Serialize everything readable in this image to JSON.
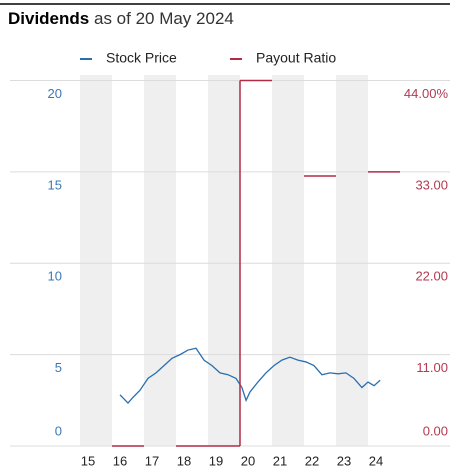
{
  "chart_data": {
    "type": "line",
    "title": "Dividends",
    "subtitle": "as of 20 May 2024",
    "xlim": [
      2015,
      2025
    ],
    "xticks": [
      {
        "value": 2015,
        "label": "15"
      },
      {
        "value": 2016,
        "label": "16"
      },
      {
        "value": 2017,
        "label": "17"
      },
      {
        "value": 2018,
        "label": "18"
      },
      {
        "value": 2019,
        "label": "19"
      },
      {
        "value": 2020,
        "label": "20"
      },
      {
        "value": 2021,
        "label": "21"
      },
      {
        "value": 2022,
        "label": "22"
      },
      {
        "value": 2023,
        "label": "23"
      },
      {
        "value": 2024,
        "label": "24"
      }
    ],
    "ylim": [
      0,
      20.3
    ],
    "yticks": [
      0,
      5,
      10,
      15,
      20
    ],
    "y2lim": [
      0,
      44.66
    ],
    "y2ticks": [
      {
        "value": 0,
        "label": "0.00"
      },
      {
        "value": 11,
        "label": "11.00"
      },
      {
        "value": 22,
        "label": "22.00"
      },
      {
        "value": 33,
        "label": "33.00"
      },
      {
        "value": 44,
        "label": "44.00%"
      }
    ],
    "series": [
      {
        "name": "Stock Price",
        "color": "#2a6fb0",
        "step": false,
        "x": [
          2016.25,
          2016.5,
          2016.625,
          2016.875,
          2017.125,
          2017.375,
          2017.625,
          2017.875,
          2018.125,
          2018.375,
          2018.625,
          2018.875,
          2019.125,
          2019.375,
          2019.625,
          2019.875,
          2020.06,
          2020.19,
          2020.31,
          2020.56,
          2020.81,
          2021.06,
          2021.31,
          2021.56,
          2021.81,
          2022.06,
          2022.31,
          2022.56,
          2022.81,
          2023.06,
          2023.31,
          2023.56,
          2023.81,
          2024.0,
          2024.19,
          2024.38
        ],
        "values": [
          2.8,
          2.35,
          2.6,
          3.05,
          3.7,
          4.0,
          4.4,
          4.8,
          5.0,
          5.25,
          5.35,
          4.7,
          4.4,
          4.0,
          3.9,
          3.7,
          3.2,
          2.5,
          2.95,
          3.5,
          4.0,
          4.4,
          4.7,
          4.86,
          4.7,
          4.6,
          4.4,
          3.9,
          4.0,
          3.95,
          4.0,
          3.7,
          3.2,
          3.5,
          3.3,
          3.6
        ]
      },
      {
        "name": "Payout Ratio",
        "color": "#b22a45",
        "axis": "y2",
        "step": true,
        "x": [
          2015,
          2016,
          2017,
          2018,
          2019,
          2020,
          2021,
          2022,
          2023,
          2024
        ],
        "values": [
          null,
          0,
          null,
          0,
          0,
          44,
          null,
          32.5,
          null,
          33
        ]
      }
    ],
    "shade_alternate": true,
    "grid": true
  }
}
